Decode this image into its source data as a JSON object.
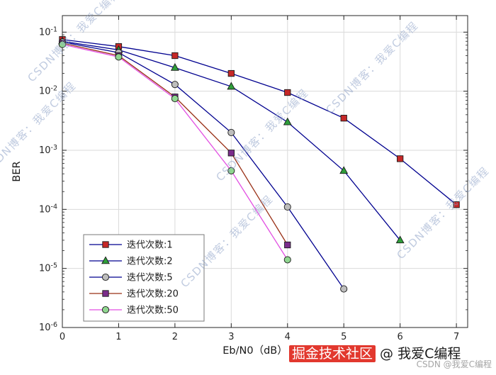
{
  "chart_data": {
    "type": "line",
    "title": "",
    "xlabel": "Eb/N0（dB）",
    "ylabel": "BER",
    "x_ticks": [
      0,
      1,
      2,
      3,
      4,
      5,
      6,
      7
    ],
    "xlim": [
      0,
      7.2
    ],
    "y_scale": "log",
    "ylim_exp": [
      -6,
      -0.72
    ],
    "y_tick_exps": [
      -1,
      -2,
      -3,
      -4,
      -5,
      -6
    ],
    "grid": true,
    "legend_position": "bottom-left",
    "series": [
      {
        "name": "迭代次数:1",
        "line_color": "#00008f",
        "marker": "square",
        "marker_fill": "#c62828",
        "x": [
          0,
          1,
          2,
          3,
          4,
          5,
          6,
          7
        ],
        "y": [
          0.075,
          0.057,
          0.04,
          0.02,
          0.0095,
          0.0035,
          0.00072,
          0.00012
        ]
      },
      {
        "name": "迭代次数:2",
        "line_color": "#00008f",
        "marker": "triangle",
        "marker_fill": "#2e9e3a",
        "x": [
          0,
          1,
          2,
          3,
          4,
          5,
          6
        ],
        "y": [
          0.07,
          0.05,
          0.025,
          0.012,
          0.003,
          0.00045,
          3e-05
        ]
      },
      {
        "name": "迭代次数:5",
        "line_color": "#00008f",
        "marker": "circle",
        "marker_fill": "#bdbdbd",
        "x": [
          0,
          1,
          2,
          3,
          4,
          5
        ],
        "y": [
          0.068,
          0.045,
          0.013,
          0.002,
          0.00011,
          4.5e-06
        ]
      },
      {
        "name": "迭代次数:20",
        "line_color": "#993016",
        "marker": "square",
        "marker_fill": "#7b2d8b",
        "x": [
          0,
          1,
          2,
          3,
          4
        ],
        "y": [
          0.065,
          0.04,
          0.008,
          0.0009,
          2.5e-05
        ]
      },
      {
        "name": "迭代次数:50",
        "line_color": "#e24fe2",
        "marker": "circle",
        "marker_fill": "#90d690",
        "x": [
          0,
          1,
          2,
          3,
          4
        ],
        "y": [
          0.062,
          0.038,
          0.0075,
          0.00045,
          1.4e-05
        ]
      }
    ]
  },
  "watermark": {
    "text": "CSDN博客：我爱C编程"
  },
  "footer": {
    "highlight_text": "掘金技术社区",
    "suffix_text": " @ 我爱C编程",
    "corner_text": "CSDN @我爱C编程",
    "highlight_color": "#e2382e"
  }
}
